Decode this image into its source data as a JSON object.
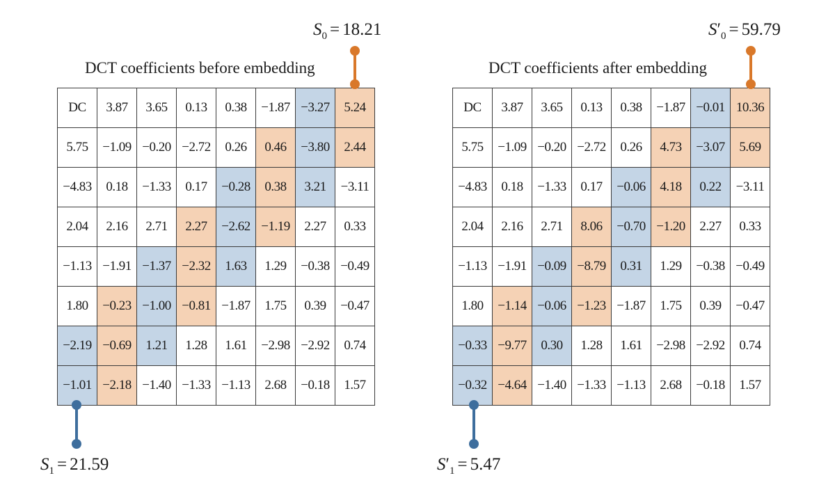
{
  "colors": {
    "orange": "#d9782a",
    "blue": "#3e6e9d"
  },
  "left": {
    "title": "DCT coefficients before embedding",
    "s0": {
      "symbol": "S",
      "sub": "0",
      "prime": "",
      "value": "18.21"
    },
    "s1": {
      "symbol": "S",
      "sub": "1",
      "prime": "",
      "value": "21.59"
    },
    "rows": [
      [
        "DC",
        "3.87",
        "3.65",
        "0.13",
        "0.38",
        "−1.87",
        "−3.27",
        "5.24"
      ],
      [
        "5.75",
        "−1.09",
        "−0.20",
        "−2.72",
        "0.26",
        "0.46",
        "−3.80",
        "2.44"
      ],
      [
        "−4.83",
        "0.18",
        "−1.33",
        "0.17",
        "−0.28",
        "0.38",
        "3.21",
        "−3.11"
      ],
      [
        "2.04",
        "2.16",
        "2.71",
        "2.27",
        "−2.62",
        "−1.19",
        "2.27",
        "0.33"
      ],
      [
        "−1.13",
        "−1.91",
        "−1.37",
        "−2.32",
        "1.63",
        "1.29",
        "−0.38",
        "−0.49"
      ],
      [
        "1.80",
        "−0.23",
        "−1.00",
        "−0.81",
        "−1.87",
        "1.75",
        "0.39",
        "−0.47"
      ],
      [
        "−2.19",
        "−0.69",
        "1.21",
        "1.28",
        "1.61",
        "−2.98",
        "−2.92",
        "0.74"
      ],
      [
        "−1.01",
        "−2.18",
        "−1.40",
        "−1.33",
        "−1.13",
        "2.68",
        "−0.18",
        "1.57"
      ]
    ]
  },
  "right": {
    "title": "DCT coefficients after embedding",
    "s0": {
      "symbol": "S",
      "sub": "0",
      "prime": "′",
      "value": "59.79"
    },
    "s1": {
      "symbol": "S",
      "sub": "1",
      "prime": "′",
      "value": "5.47"
    },
    "rows": [
      [
        "DC",
        "3.87",
        "3.65",
        "0.13",
        "0.38",
        "−1.87",
        "−0.01",
        "10.36"
      ],
      [
        "5.75",
        "−1.09",
        "−0.20",
        "−2.72",
        "0.26",
        "4.73",
        "−3.07",
        "5.69"
      ],
      [
        "−4.83",
        "0.18",
        "−1.33",
        "0.17",
        "−0.06",
        "4.18",
        "0.22",
        "−3.11"
      ],
      [
        "2.04",
        "2.16",
        "2.71",
        "8.06",
        "−0.70",
        "−1.20",
        "2.27",
        "0.33"
      ],
      [
        "−1.13",
        "−1.91",
        "−0.09",
        "−8.79",
        "0.31",
        "1.29",
        "−0.38",
        "−0.49"
      ],
      [
        "1.80",
        "−1.14",
        "−0.06",
        "−1.23",
        "−1.87",
        "1.75",
        "0.39",
        "−0.47"
      ],
      [
        "−0.33",
        "−9.77",
        "0.30",
        "1.28",
        "1.61",
        "−2.98",
        "−2.92",
        "0.74"
      ],
      [
        "−0.32",
        "−4.64",
        "−1.40",
        "−1.33",
        "−1.13",
        "2.68",
        "−0.18",
        "1.57"
      ]
    ]
  }
}
